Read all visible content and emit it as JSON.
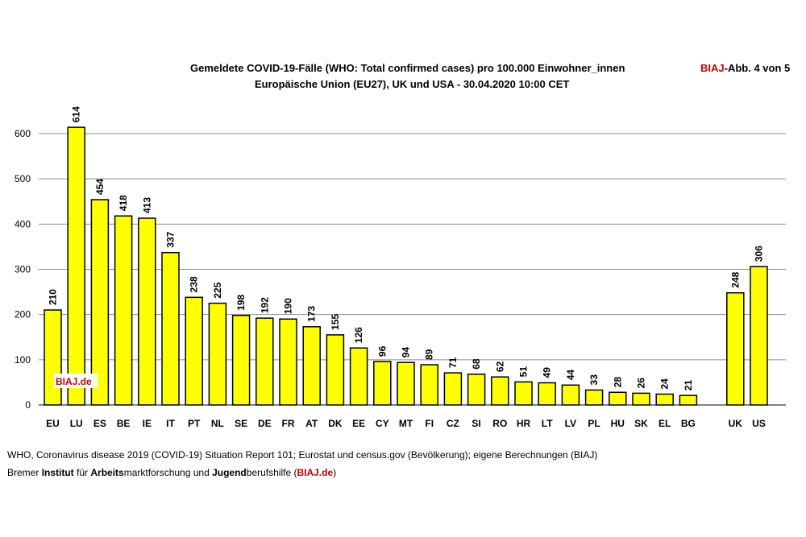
{
  "header": {
    "title_line1": "Gemeldete COVID-19-Fälle (WHO: Total confirmed cases) pro 100.000 Einwohner_innen",
    "title_line2": "Europäische Union (EU27), UK und USA - 30.04.2020 10:00 CET",
    "badge_brand": "BIAJ",
    "badge_rest": "-Abb. 4 von 5"
  },
  "watermark": "BIAJ.de",
  "chart_data": {
    "type": "bar",
    "title": "Gemeldete COVID-19-Fälle (WHO: Total confirmed cases) pro 100.000 Einwohner_innen",
    "subtitle": "Europäische Union (EU27), UK und USA - 30.04.2020 10:00 CET",
    "categories": [
      "EU",
      "LU",
      "ES",
      "BE",
      "IE",
      "IT",
      "PT",
      "NL",
      "SE",
      "DE",
      "FR",
      "AT",
      "DK",
      "EE",
      "CY",
      "MT",
      "FI",
      "CZ",
      "SI",
      "RO",
      "HR",
      "LT",
      "LV",
      "PL",
      "HU",
      "SK",
      "EL",
      "BG",
      "UK",
      "US"
    ],
    "values": [
      210,
      614,
      454,
      418,
      413,
      337,
      238,
      225,
      198,
      192,
      190,
      173,
      155,
      126,
      96,
      94,
      89,
      71,
      68,
      62,
      51,
      49,
      44,
      33,
      28,
      26,
      24,
      21,
      248,
      306
    ],
    "data_labels": [
      "210",
      "614",
      "454",
      "418",
      "413",
      "337",
      "238",
      "225",
      "198",
      "192",
      "190",
      "173",
      "155",
      "126",
      "96",
      "94",
      "89",
      "71",
      "68",
      "62",
      "51",
      "49",
      "44",
      "33",
      "28",
      "26",
      "24",
      "21",
      "248",
      "306"
    ],
    "yticks": [
      "0",
      "100",
      "200",
      "300",
      "400",
      "500",
      "600"
    ],
    "ylim": [
      0,
      600
    ],
    "grid": true,
    "bar_color": "#ffff00",
    "legend": false
  },
  "footer": {
    "source": "WHO, Coronavirus disease 2019 (COVID-19) Situation Report 101; Eurostat und census.gov (Bevölkerung); eigene Berechnungen (BIAJ)",
    "inst_1": "Bremer ",
    "inst_2": "Institut",
    "inst_3": " für ",
    "inst_4": "Arbeits",
    "inst_5": "marktforschung und ",
    "inst_6": "Jugend",
    "inst_7": "berufshilfe (",
    "inst_8": "BIAJ.de",
    "inst_9": ")"
  }
}
